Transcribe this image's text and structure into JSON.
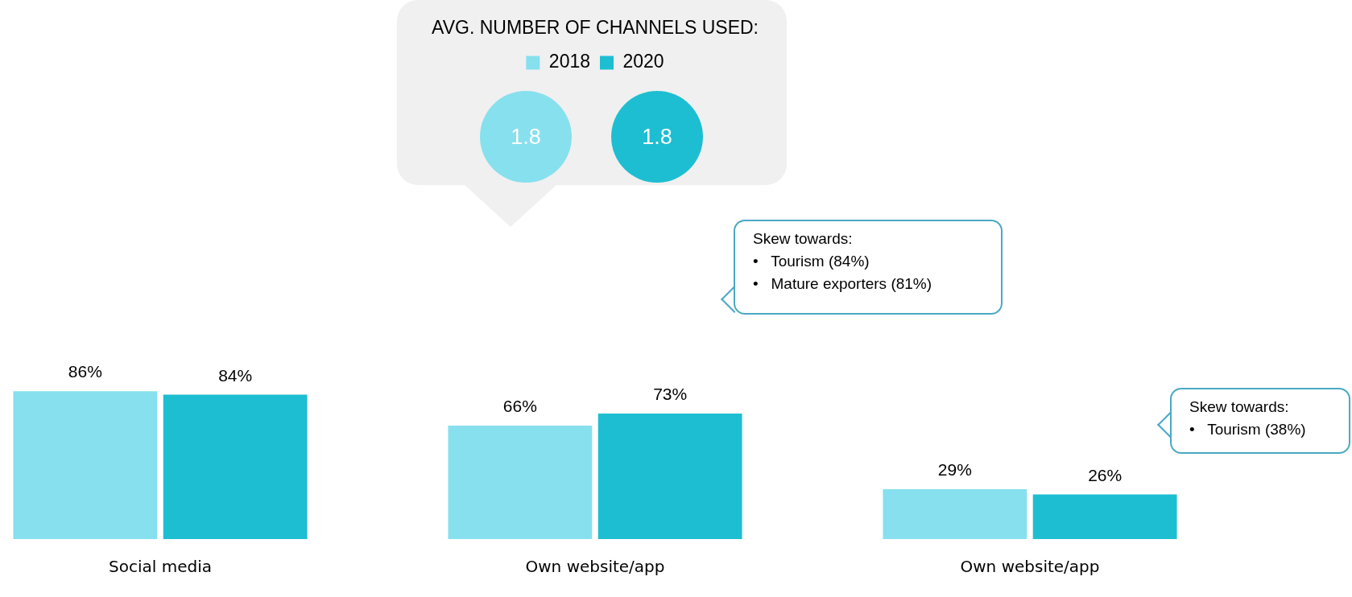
{
  "chart_data": {
    "type": "bar",
    "title": "AVG. NUMBER OF CHANNELS USED:",
    "categories": [
      "Social media",
      "Own website/app",
      "Own website/app"
    ],
    "series": [
      {
        "name": "2018",
        "color": "#87e0ee",
        "values": [
          86,
          66,
          29
        ],
        "value_labels": [
          "86%",
          "66%",
          "29%"
        ]
      },
      {
        "name": "2020",
        "color": "#1ebed2",
        "values": [
          84,
          73,
          26
        ],
        "value_labels": [
          "84%",
          "73%",
          "26%"
        ]
      }
    ],
    "grid": false,
    "legend": "top",
    "tick_labels": "x",
    "annotations": [
      "1.8",
      "1.8",
      "Skew towards:\n•   Tourism (84%)\n•   Mature exporters (81%)",
      "Skew towards:\n•   Tourism (38%)"
    ]
  }
}
